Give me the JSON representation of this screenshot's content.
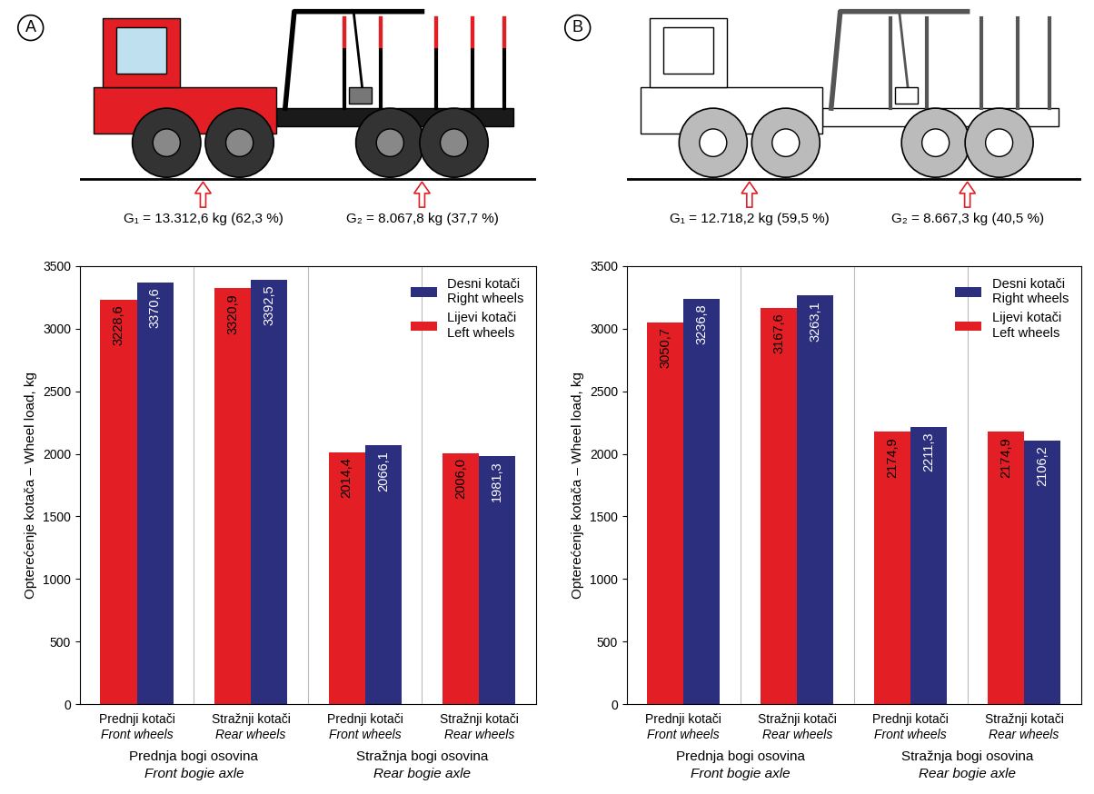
{
  "chart_data": [
    {
      "type": "bar",
      "panel_label": "A",
      "axle_loads": [
        "G₁ = 13.312,6 kg (62,3 %)",
        "G₂ = 8.067,8 kg (37,7 %)"
      ],
      "y_label": "Opterećenje kotača – Wheel load, kg",
      "categories": [
        "Prednji kotači\nFront wheels",
        "Stražnji kotači\nRear wheels",
        "Prednji kotači\nFront wheels",
        "Stražnji kotači\nRear wheels"
      ],
      "x_groups": [
        "Prednja bogi osovina\nFront bogie axle",
        "Stražnja bogi osovina\nRear bogie axle"
      ],
      "series": [
        {
          "name": "Desni kotači\nRight wheels",
          "color": "#2b2f7e",
          "values": [
            3370.6,
            3392.5,
            2066.1,
            1981.3
          ],
          "value_labels": [
            "3370,6",
            "3392,5",
            "2066,1",
            "1981,3"
          ]
        },
        {
          "name": "Lijevi kotači\nLeft wheels",
          "color": "#e31e24",
          "values": [
            3228.6,
            3320.9,
            2014.4,
            2006.0
          ],
          "value_labels": [
            "3228,6",
            "3320,9",
            "2014,4",
            "2006,0"
          ]
        }
      ],
      "ylim": [
        0,
        3500
      ],
      "yticks": [
        0,
        500,
        1000,
        1500,
        2000,
        2500,
        3000,
        3500
      ],
      "legend": "upper right",
      "data_labels": true,
      "grid": false
    },
    {
      "type": "bar",
      "panel_label": "B",
      "axle_loads": [
        "G₁ = 12.718,2 kg (59,5 %)",
        "G₂ = 8.667,3 kg (40,5 %)"
      ],
      "y_label": "Opterećenje kotača – Wheel load, kg",
      "categories": [
        "Prednji kotači\nFront wheels",
        "Stražnji kotači\nRear wheels",
        "Prednji kotači\nFront wheels",
        "Stražnji kotači\nRear wheels"
      ],
      "x_groups": [
        "Prednja bogi osovina\nFront bogie axle",
        "Stražnja bogi osovina\nRear bogie axle"
      ],
      "series": [
        {
          "name": "Desni kotači\nRight wheels",
          "color": "#2b2f7e",
          "values": [
            3236.8,
            3263.1,
            2211.3,
            2106.2
          ],
          "value_labels": [
            "3236,8",
            "3263,1",
            "2211,3",
            "2106,2"
          ]
        },
        {
          "name": "Lijevi kotači\nLeft wheels",
          "color": "#e31e24",
          "values": [
            3050.7,
            3167.6,
            2174.9,
            2174.9
          ],
          "value_labels": [
            "3050,7",
            "3167,6",
            "2174,9",
            "2174,9"
          ]
        }
      ],
      "ylim": [
        0,
        3500
      ],
      "yticks": [
        0,
        500,
        1000,
        1500,
        2000,
        2500,
        3000,
        3500
      ],
      "legend": "upper right",
      "data_labels": true,
      "grid": false
    }
  ]
}
